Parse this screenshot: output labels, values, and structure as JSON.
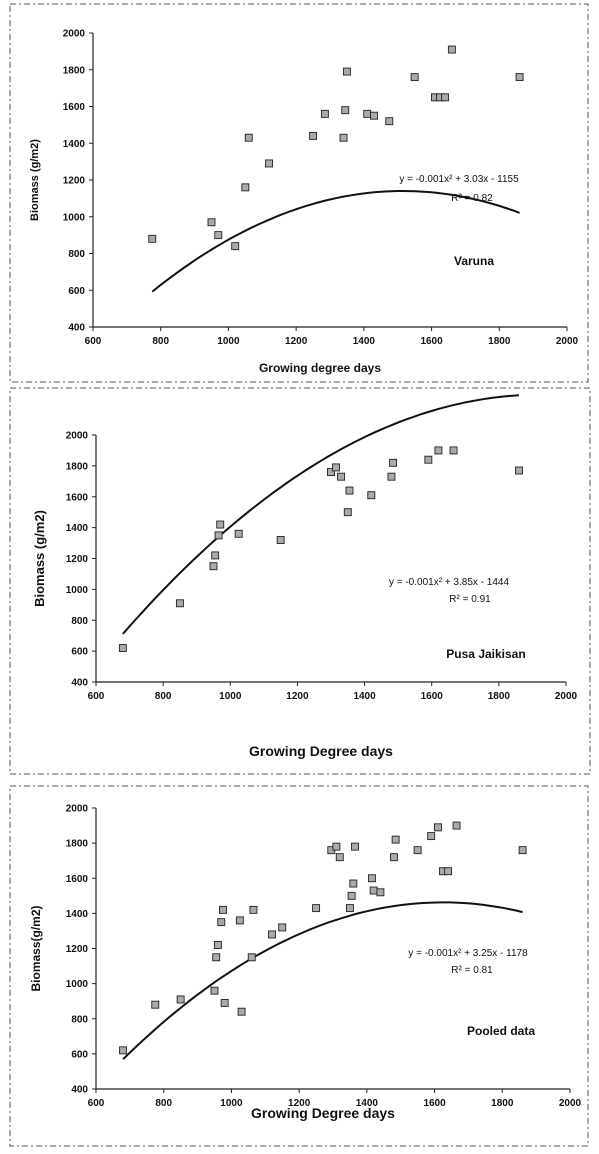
{
  "chart_data": [
    {
      "type": "scatter",
      "title": "",
      "xlabel": "Growing degree days",
      "ylabel": "Biomass (g/m2)",
      "xlim": [
        600,
        2000
      ],
      "ylim": [
        400,
        2000
      ],
      "xticks": [
        600,
        800,
        1000,
        1200,
        1400,
        1600,
        1800,
        2000
      ],
      "yticks": [
        400,
        600,
        800,
        1000,
        1200,
        1400,
        1600,
        1800,
        2000
      ],
      "equation": "y = -0.001x² + 3.03x - 1155",
      "r2": "R² = 0.82",
      "label": "Varuna",
      "trend": {
        "a": -0.001,
        "b": 3.03,
        "c": -1155,
        "xmin": 775,
        "xmax": 1860
      },
      "grid": false,
      "series": [
        {
          "x": [
            775,
            950,
            970,
            1020,
            1050,
            1060,
            1120,
            1250,
            1285,
            1340,
            1345,
            1350,
            1410,
            1430,
            1475,
            1550,
            1610,
            1625,
            1640,
            1660,
            1860
          ],
          "y": [
            880,
            970,
            900,
            840,
            1160,
            1430,
            1290,
            1440,
            1560,
            1430,
            1580,
            1790,
            1560,
            1550,
            1520,
            1760,
            1650,
            1650,
            1650,
            1910,
            1760
          ]
        }
      ]
    },
    {
      "type": "scatter",
      "title": "",
      "xlabel": "Growing Degree days",
      "ylabel": "Biomass (g/m2)",
      "xlim": [
        600,
        2000
      ],
      "ylim": [
        400,
        2000
      ],
      "xticks": [
        600,
        800,
        1000,
        1200,
        1400,
        1600,
        1800,
        2000
      ],
      "yticks": [
        400,
        600,
        800,
        1000,
        1200,
        1400,
        1600,
        1800,
        2000
      ],
      "equation": "y = -0.001x² + 3.85x - 1444",
      "r2": "R² = 0.91",
      "label": "Pusa Jaikisan",
      "trend": {
        "a": -0.001,
        "b": 3.85,
        "c": -1444,
        "xmin": 680,
        "xmax": 1860
      },
      "grid": false,
      "series": [
        {
          "x": [
            680,
            850,
            950,
            955,
            965,
            970,
            1025,
            1150,
            1300,
            1315,
            1330,
            1350,
            1355,
            1420,
            1480,
            1485,
            1590,
            1620,
            1665,
            1860
          ],
          "y": [
            620,
            910,
            1150,
            1220,
            1350,
            1420,
            1360,
            1320,
            1760,
            1790,
            1730,
            1500,
            1640,
            1610,
            1730,
            1820,
            1840,
            1900,
            1900,
            1770
          ]
        }
      ]
    },
    {
      "type": "scatter",
      "title": "",
      "xlabel": "Growing Degree days",
      "ylabel": "Biomass(g/m2)",
      "xlim": [
        600,
        2000
      ],
      "ylim": [
        400,
        2000
      ],
      "xticks": [
        600,
        800,
        1000,
        1200,
        1400,
        1600,
        1800,
        2000
      ],
      "yticks": [
        400,
        600,
        800,
        1000,
        1200,
        1400,
        1600,
        1800,
        2000
      ],
      "equation": "y = -0.001x² + 3.25x - 1178",
      "r2": "R² = 0.81",
      "label": "Pooled data",
      "trend": {
        "a": -0.001,
        "b": 3.25,
        "c": -1178,
        "xmin": 680,
        "xmax": 1860
      },
      "grid": false,
      "series": [
        {
          "x": [
            680,
            775,
            850,
            950,
            955,
            960,
            970,
            975,
            980,
            1025,
            1030,
            1060,
            1065,
            1120,
            1150,
            1250,
            1295,
            1310,
            1320,
            1350,
            1355,
            1360,
            1365,
            1415,
            1420,
            1440,
            1480,
            1485,
            1550,
            1590,
            1610,
            1625,
            1640,
            1665,
            1860
          ],
          "y": [
            620,
            880,
            910,
            960,
            1150,
            1220,
            1350,
            1420,
            890,
            1360,
            840,
            1150,
            1420,
            1280,
            1320,
            1430,
            1760,
            1780,
            1720,
            1430,
            1500,
            1570,
            1780,
            1600,
            1530,
            1520,
            1720,
            1820,
            1760,
            1840,
            1890,
            1640,
            1640,
            1900,
            1760
          ]
        }
      ]
    }
  ]
}
